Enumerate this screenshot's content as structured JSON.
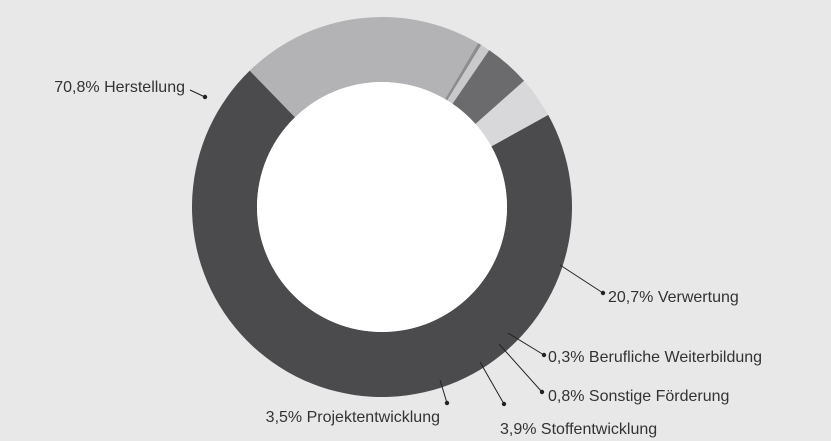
{
  "chart_data": {
    "type": "donut",
    "categories": [
      "Herstellung",
      "Verwertung",
      "Berufliche Weiterbildung",
      "Sonstige Förderung",
      "Stoffentwicklung",
      "Projektentwicklung"
    ],
    "values": [
      70.8,
      20.7,
      0.3,
      0.8,
      3.9,
      3.5
    ],
    "value_labels": [
      "70,8%",
      "20,7%",
      "0,3%",
      "0,8%",
      "3,9%",
      "3,5%"
    ],
    "colors": [
      "#4b4b4d",
      "#b3b3b5",
      "#8c8c8e",
      "#c9c9cb",
      "#6b6b6d",
      "#d8d8da"
    ]
  }
}
